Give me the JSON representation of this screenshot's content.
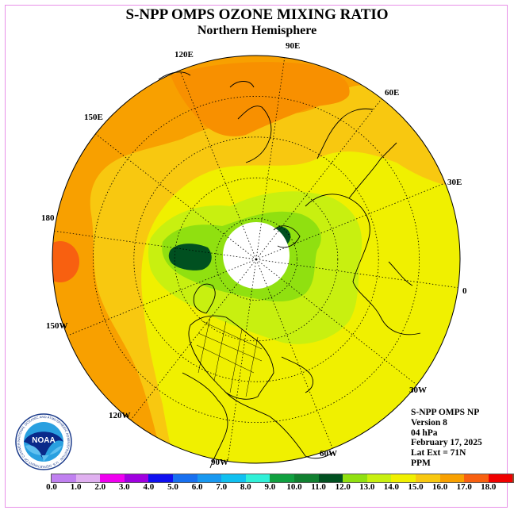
{
  "title": "S-NPP OMPS OZONE MIXING RATIO",
  "subtitle": "Northern Hemisphere",
  "longitude_labels": [
    "90E",
    "60E",
    "30E",
    "0",
    "30W",
    "60W",
    "90W",
    "120W",
    "150W",
    "180",
    "150E",
    "120E"
  ],
  "info": {
    "product": "S-NPP OMPS NP",
    "version": "Version 8",
    "level": "04 hPa",
    "date": "February 17, 2025",
    "lat_ext": "Lat Ext = 71N",
    "units": "PPM"
  },
  "logo": {
    "text": "NOAA",
    "ring_text": "NATIONAL OCEANIC AND ATMOSPHERIC ADMINISTRATION · U.S. DEPARTMENT OF COMMERCE"
  },
  "colorbar": {
    "colors": [
      "#c080f0",
      "#e0b0f0",
      "#f000f0",
      "#a000e0",
      "#1010f0",
      "#1870f0",
      "#1898f0",
      "#10c0f0",
      "#30f0d8",
      "#10a040",
      "#108030",
      "#005020",
      "#90e010",
      "#c8f010",
      "#f0f000",
      "#f8c810",
      "#f8a000",
      "#f86010",
      "#f00000",
      "#805030"
    ],
    "tick_labels": [
      "0.0",
      "1.0",
      "2.0",
      "3.0",
      "4.0",
      "5.0",
      "6.0",
      "7.0",
      "8.0",
      "9.0",
      "10.0",
      "11.0",
      "12.0",
      "13.0",
      "14.0",
      "15.0",
      "16.0",
      "17.0",
      "18.0"
    ]
  }
}
